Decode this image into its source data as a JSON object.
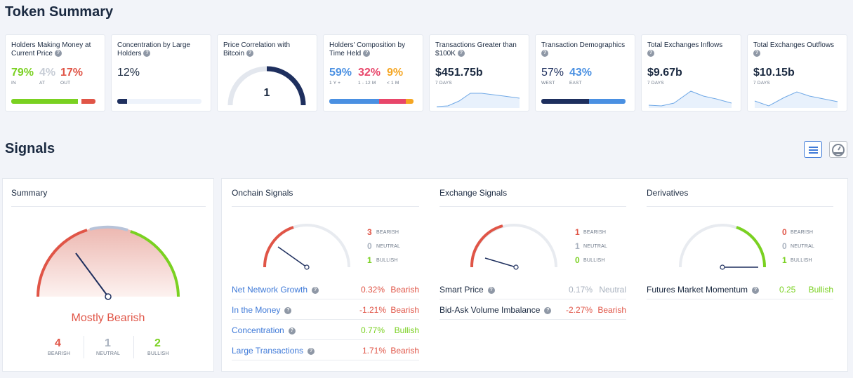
{
  "token_summary": {
    "title": "Token Summary",
    "holders_money": {
      "title": "Holders Making Money at Current Price",
      "in_val": "79%",
      "in_lbl": "IN",
      "at_val": "4%",
      "at_lbl": "AT",
      "out_val": "17%",
      "out_lbl": "OUT",
      "in_pct": 79,
      "at_pct": 4,
      "out_pct": 17
    },
    "concentration": {
      "title": "Concentration by Large Holders",
      "value": "12%",
      "pct": 12
    },
    "price_corr": {
      "title": "Price Correlation with Bitcoin",
      "value": "1",
      "level": 1
    },
    "composition": {
      "title": "Holders' Composition by Time Held",
      "a_val": "59%",
      "a_lbl": "1 Y +",
      "b_val": "32%",
      "b_lbl": "1 - 12 M",
      "c_val": "9%",
      "c_lbl": "< 1 M",
      "a_pct": 59,
      "b_pct": 32,
      "c_pct": 9
    },
    "tx_greater": {
      "title": "Transactions Greater than $100K",
      "value": "$451.75b",
      "period": "7 DAYS"
    },
    "tx_demo": {
      "title": "Transaction Demographics",
      "west_val": "57%",
      "west_lbl": "WEST",
      "east_val": "43%",
      "east_lbl": "EAST",
      "west_pct": 57,
      "east_pct": 43
    },
    "inflows": {
      "title": "Total Exchanges Inflows",
      "value": "$9.67b",
      "period": "7 DAYS"
    },
    "outflows": {
      "title": "Total Exchanges Outflows",
      "value": "$10.15b",
      "period": "7 DAYS"
    }
  },
  "signals": {
    "title": "Signals",
    "summary": {
      "title": "Summary",
      "verdict": "Mostly Bearish",
      "bearish": "4",
      "neutral": "1",
      "bullish": "2",
      "bearish_lbl": "BEARISH",
      "neutral_lbl": "NEUTRAL",
      "bullish_lbl": "BULLISH"
    },
    "onchain": {
      "title": "Onchain Signals",
      "bearish": "3",
      "neutral": "0",
      "bullish": "1",
      "bearish_lbl": "BEARISH",
      "neutral_lbl": "NEUTRAL",
      "bullish_lbl": "BULLISH",
      "rows": [
        {
          "label": "Net Network Growth",
          "pct": "0.32%",
          "status": "Bearish"
        },
        {
          "label": "In the Money",
          "pct": "-1.21%",
          "status": "Bearish"
        },
        {
          "label": "Concentration",
          "pct": "0.77%",
          "status": "Bullish"
        },
        {
          "label": "Large Transactions",
          "pct": "1.71%",
          "status": "Bearish"
        }
      ]
    },
    "exchange": {
      "title": "Exchange Signals",
      "bearish": "1",
      "neutral": "1",
      "bullish": "0",
      "bearish_lbl": "BEARISH",
      "neutral_lbl": "NEUTRAL",
      "bullish_lbl": "BULLISH",
      "rows": [
        {
          "label": "Smart Price",
          "pct": "0.17%",
          "status": "Neutral"
        },
        {
          "label": "Bid-Ask Volume Imbalance",
          "pct": "-2.27%",
          "status": "Bearish"
        }
      ]
    },
    "derivatives": {
      "title": "Derivatives",
      "bearish": "0",
      "neutral": "0",
      "bullish": "1",
      "bearish_lbl": "BEARISH",
      "neutral_lbl": "NEUTRAL",
      "bullish_lbl": "BULLISH",
      "rows": [
        {
          "label": "Futures Market Momentum",
          "pct": "0.25",
          "status": "Bullish"
        }
      ]
    }
  },
  "colors": {
    "bearish": "#e05547",
    "neutral": "#a9b2bf",
    "bullish": "#7ad121",
    "link": "#3f7ad8",
    "navy": "#1e2f5e",
    "blue": "#4a90e2"
  },
  "icons": {
    "list_view": "list-icon",
    "gauge_view": "gauge-icon",
    "help": "question-icon"
  }
}
